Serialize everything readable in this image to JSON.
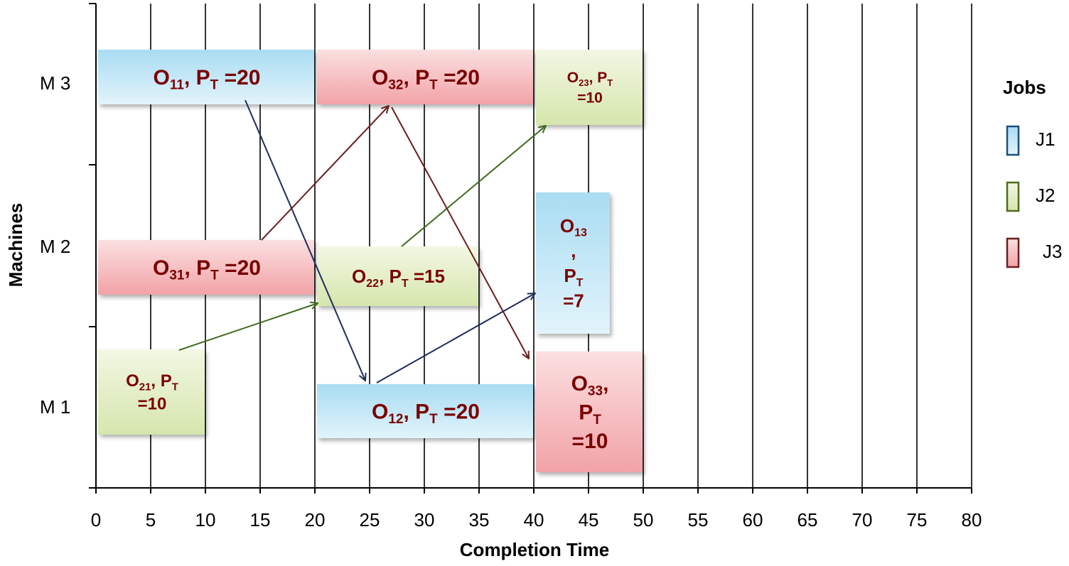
{
  "chart_data": {
    "type": "gantt",
    "title": "",
    "xlabel": "Completion Time",
    "ylabel": "Machines",
    "xlim": [
      0,
      80
    ],
    "x_ticks": [
      0,
      5,
      10,
      15,
      20,
      25,
      30,
      35,
      40,
      45,
      50,
      55,
      60,
      65,
      70,
      75,
      80
    ],
    "machines": [
      "M 3",
      "M 2",
      "M 1"
    ],
    "legend": {
      "title": "Jobs",
      "entries": [
        {
          "job": "J1",
          "label": "J1"
        },
        {
          "job": "J2",
          "label": "J2"
        },
        {
          "job": "J3",
          "label": "J3"
        }
      ]
    },
    "job_colors": {
      "J1": {
        "fill": "#bfe6f5",
        "stroke": "#1f4e79"
      },
      "J2": {
        "fill": "#e3efc6",
        "stroke": "#4f6b1c"
      },
      "J3": {
        "fill": "#f8c6c8",
        "stroke": "#6b1e1e"
      }
    },
    "tasks": [
      {
        "id": "O11",
        "job": "J1",
        "machine": "M 3",
        "start": 0,
        "end": 20,
        "lines": [
          [
            "O",
            "11",
            ", P",
            "T",
            " =20"
          ]
        ]
      },
      {
        "id": "O32",
        "job": "J3",
        "machine": "M 3",
        "start": 20,
        "end": 40,
        "lines": [
          [
            "O",
            "32",
            ", P",
            "T",
            " =20"
          ]
        ]
      },
      {
        "id": "O23",
        "job": "J2",
        "machine": "M 3",
        "start": 40,
        "end": 50,
        "lines": [
          [
            "O",
            "23",
            ", P",
            "T"
          ],
          [
            "=10"
          ]
        ]
      },
      {
        "id": "O31",
        "job": "J3",
        "machine": "M 2",
        "start": 0,
        "end": 20,
        "lines": [
          [
            "O",
            "31",
            ", P",
            "T",
            " =20"
          ]
        ]
      },
      {
        "id": "O22",
        "job": "J2",
        "machine": "M 2",
        "start": 20,
        "end": 35,
        "lines": [
          [
            "O",
            "22",
            ", P",
            "T",
            " =15"
          ]
        ]
      },
      {
        "id": "O13",
        "job": "J1",
        "machine": "M 2",
        "start": 40,
        "end": 47,
        "lines": [
          [
            "O",
            "13"
          ],
          [
            ","
          ],
          [
            "P",
            "T"
          ],
          [
            "=7"
          ]
        ]
      },
      {
        "id": "O21",
        "job": "J2",
        "machine": "M 1",
        "start": 0,
        "end": 10,
        "lines": [
          [
            "O",
            "21",
            ", P",
            "T"
          ],
          [
            "=10"
          ]
        ]
      },
      {
        "id": "O12",
        "job": "J1",
        "machine": "M 1",
        "start": 20,
        "end": 40,
        "lines": [
          [
            "O",
            "12",
            ", P",
            "T",
            " =20"
          ]
        ]
      },
      {
        "id": "O33",
        "job": "J3",
        "machine": "M 1",
        "start": 40,
        "end": 50,
        "lines": [
          [
            "O",
            "33",
            ","
          ],
          [
            "P",
            "T"
          ],
          [
            "=10"
          ]
        ]
      }
    ],
    "precedence_arrows": [
      {
        "job": "J1",
        "from": "O11",
        "to": "O12"
      },
      {
        "job": "J1",
        "from": "O12",
        "to": "O13"
      },
      {
        "job": "J2",
        "from": "O21",
        "to": "O22"
      },
      {
        "job": "J2",
        "from": "O22",
        "to": "O23"
      },
      {
        "job": "J3",
        "from": "O31",
        "to": "O32"
      },
      {
        "job": "J3",
        "from": "O32",
        "to": "O33"
      }
    ]
  }
}
